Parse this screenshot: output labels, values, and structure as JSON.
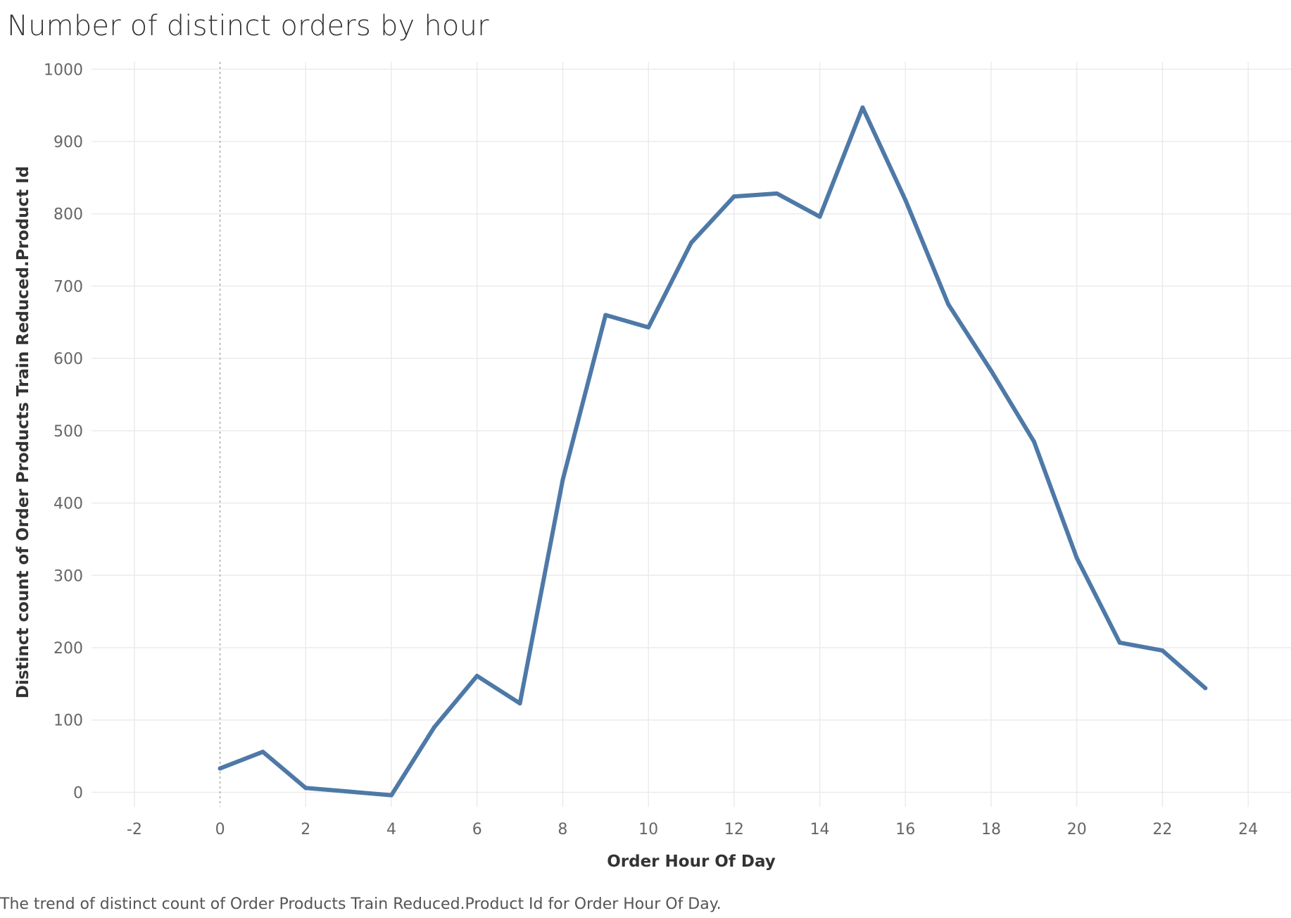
{
  "chart_data": {
    "type": "line",
    "title": "Number of distinct orders by hour",
    "caption": "The trend of distinct count of Order Products Train Reduced.Product Id for Order Hour Of Day.",
    "xlabel": "Order Hour Of Day",
    "ylabel": "Distinct count of Order Products Train Reduced.Product Id",
    "xlim": [
      -3,
      25
    ],
    "ylim": [
      -20,
      1010
    ],
    "x_ticks": [
      -2,
      0,
      2,
      4,
      6,
      8,
      10,
      12,
      14,
      16,
      18,
      20,
      22,
      24
    ],
    "y_ticks": [
      0,
      100,
      200,
      300,
      400,
      500,
      600,
      700,
      800,
      900,
      1000
    ],
    "grid": true,
    "color": "#4e79a7",
    "x": [
      0,
      1,
      2,
      3,
      4,
      5,
      6,
      7,
      8,
      9,
      10,
      11,
      12,
      13,
      14,
      15,
      16,
      17,
      18,
      19,
      20,
      21,
      22,
      23
    ],
    "values": [
      33,
      56,
      6,
      1,
      -4,
      90,
      161,
      123,
      432,
      660,
      643,
      760,
      824,
      828,
      796,
      947,
      819,
      675,
      583,
      485,
      324,
      207,
      196,
      144
    ]
  }
}
